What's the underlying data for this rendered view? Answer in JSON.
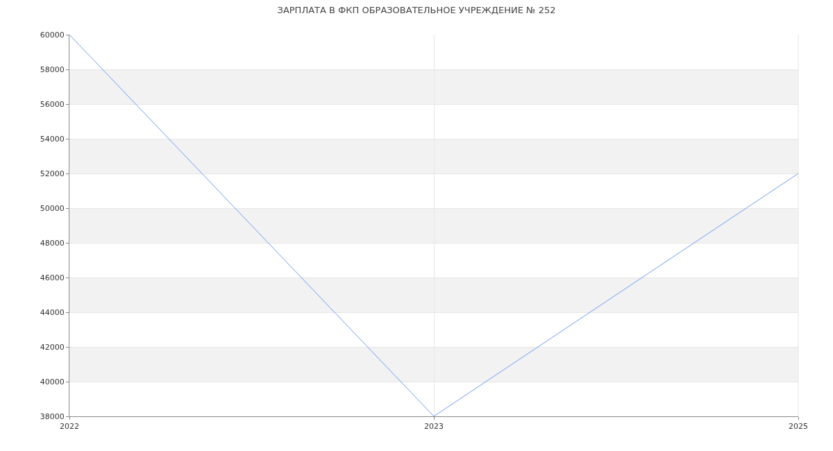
{
  "chart_data": {
    "type": "line",
    "title": "ЗАРПЛАТА В ФКП ОБРАЗОВАТЕЛЬНОЕ УЧРЕЖДЕНИЕ № 252",
    "categories": [
      "2022",
      "2023",
      "2025"
    ],
    "series": [
      {
        "color": "#6f9cf0",
        "values": [
          60000,
          38000,
          52000
        ]
      }
    ],
    "ylim": [
      38000,
      60000
    ],
    "yticks": [
      38000,
      40000,
      42000,
      44000,
      46000,
      48000,
      50000,
      52000,
      54000,
      56000,
      58000,
      60000
    ],
    "bands": [
      {
        "axis": "y",
        "from": 40000,
        "to": 42000,
        "color": "#f2f2f2"
      },
      {
        "axis": "y",
        "from": 44000,
        "to": 46000,
        "color": "#f2f2f2"
      },
      {
        "axis": "y",
        "from": 48000,
        "to": 50000,
        "color": "#f2f2f2"
      },
      {
        "axis": "y",
        "from": 52000,
        "to": 54000,
        "color": "#f2f2f2"
      },
      {
        "axis": "y",
        "from": 56000,
        "to": 58000,
        "color": "#f2f2f2"
      }
    ],
    "grid": true,
    "marker": "none",
    "line_style": "solid"
  }
}
